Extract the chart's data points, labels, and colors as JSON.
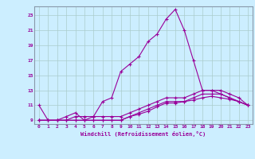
{
  "xlabel": "Windchill (Refroidissement éolien,°C)",
  "bg_color": "#cceeff",
  "line_color": "#990099",
  "grid_color": "#aacccc",
  "xlim": [
    -0.5,
    23.5
  ],
  "ylim": [
    8.5,
    24.2
  ],
  "yticks": [
    9,
    11,
    13,
    15,
    17,
    19,
    21,
    23
  ],
  "xticks": [
    0,
    1,
    2,
    3,
    4,
    5,
    6,
    7,
    8,
    9,
    10,
    11,
    12,
    13,
    14,
    15,
    16,
    17,
    18,
    19,
    20,
    21,
    22,
    23
  ],
  "line1_x": [
    0,
    1,
    2,
    3,
    4,
    5,
    6,
    7,
    8,
    9,
    10,
    11,
    12,
    13,
    14,
    15,
    16,
    17,
    18,
    19,
    20,
    21,
    22,
    23
  ],
  "line1_y": [
    11,
    9,
    9,
    9.5,
    10,
    9,
    9.5,
    11.5,
    12,
    15.5,
    16.5,
    17.5,
    19.5,
    20.5,
    22.5,
    23.8,
    21,
    17,
    13,
    13,
    12.5,
    12,
    11.5,
    11
  ],
  "line2_x": [
    0,
    1,
    2,
    3,
    4,
    5,
    6,
    7,
    8,
    9,
    10,
    11,
    12,
    13,
    14,
    15,
    16,
    17,
    18,
    19,
    20,
    21,
    22,
    23
  ],
  "line2_y": [
    9,
    9,
    9,
    9,
    9.5,
    9.5,
    9.5,
    9.5,
    9.5,
    9.5,
    10,
    10.5,
    11,
    11.5,
    12,
    12,
    12,
    12.5,
    13,
    13,
    13,
    12.5,
    12,
    11
  ],
  "line3_x": [
    0,
    1,
    2,
    3,
    4,
    5,
    6,
    7,
    8,
    9,
    10,
    11,
    12,
    13,
    14,
    15,
    16,
    17,
    18,
    19,
    20,
    21,
    22,
    23
  ],
  "line3_y": [
    9,
    9,
    9,
    9,
    9,
    9,
    9,
    9,
    9,
    9,
    9.5,
    10,
    10.5,
    11,
    11.5,
    11.5,
    11.5,
    12,
    12.5,
    12.5,
    12.5,
    12,
    11.5,
    11
  ],
  "line4_x": [
    0,
    1,
    2,
    3,
    4,
    5,
    6,
    7,
    8,
    9,
    10,
    11,
    12,
    13,
    14,
    15,
    16,
    17,
    18,
    19,
    20,
    21,
    22,
    23
  ],
  "line4_y": [
    9,
    9,
    9,
    9,
    9,
    9,
    9,
    9,
    9,
    9,
    9.5,
    9.8,
    10.2,
    10.8,
    11.3,
    11.3,
    11.5,
    11.7,
    12,
    12.2,
    12,
    11.8,
    11.5,
    11
  ]
}
